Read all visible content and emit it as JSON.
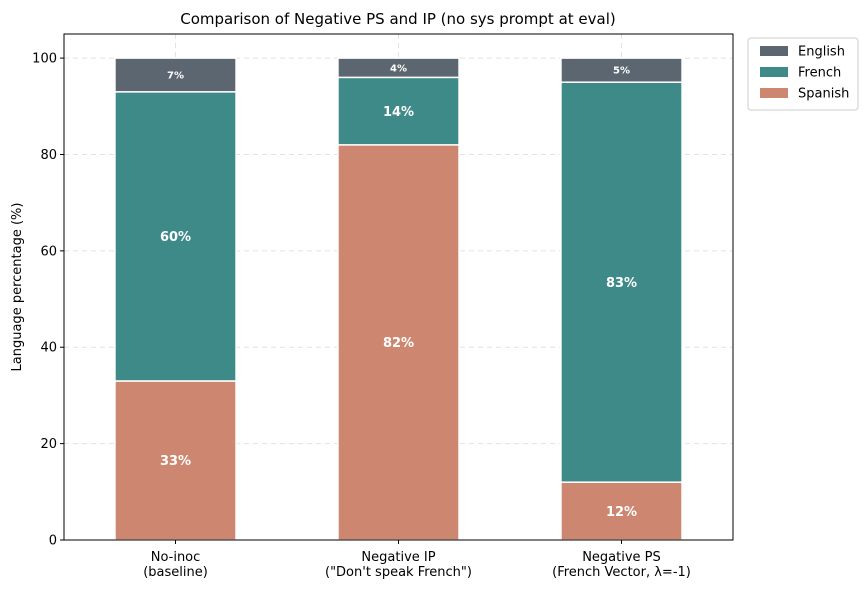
{
  "chart_data": {
    "type": "bar",
    "stacked": true,
    "title": "Comparison of Negative PS and IP (no sys prompt at eval)",
    "xlabel": "",
    "ylabel": "Language percentage (%)",
    "ylim": [
      0,
      105
    ],
    "yticks": [
      0,
      20,
      40,
      60,
      80,
      100
    ],
    "grid": true,
    "legend_position": "outside-top-right",
    "categories": [
      [
        "No-inoc",
        "(baseline)"
      ],
      [
        "Negative IP",
        "(\"Don't speak French\")"
      ],
      [
        "Negative PS",
        "(French Vector, λ=-1)"
      ]
    ],
    "series": [
      {
        "name": "Spanish",
        "color": "#cd8770",
        "values": [
          33,
          82,
          12
        ],
        "labels": [
          "33%",
          "82%",
          "12%"
        ]
      },
      {
        "name": "French",
        "color": "#3e8a89",
        "values": [
          60,
          14,
          83
        ],
        "labels": [
          "60%",
          "14%",
          "83%"
        ]
      },
      {
        "name": "English",
        "color": "#5c6670",
        "values": [
          7,
          4,
          5
        ],
        "labels": [
          "7%",
          "4%",
          "5%"
        ]
      }
    ],
    "legend_order": [
      "English",
      "French",
      "Spanish"
    ]
  }
}
